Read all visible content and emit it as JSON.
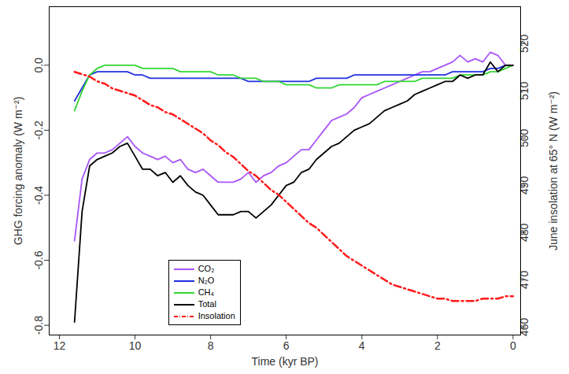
{
  "chart_data": {
    "type": "line",
    "xlabel": "Time (kyr BP)",
    "ylabel": "GHG forcing anomaly (W m⁻²)",
    "y2label": "June insolation at 65° N (W m⁻²)",
    "legend": "lower center",
    "grid": false,
    "x": [
      11.6,
      11.4,
      11.2,
      11.0,
      10.8,
      10.6,
      10.4,
      10.2,
      10.0,
      9.8,
      9.6,
      9.4,
      9.2,
      9.0,
      8.8,
      8.6,
      8.4,
      8.2,
      8.0,
      7.8,
      7.6,
      7.4,
      7.2,
      7.0,
      6.8,
      6.6,
      6.4,
      6.2,
      6.0,
      5.8,
      5.6,
      5.4,
      5.2,
      5.0,
      4.8,
      4.6,
      4.4,
      4.2,
      4.0,
      3.8,
      3.6,
      3.4,
      3.2,
      3.0,
      2.8,
      2.6,
      2.4,
      2.2,
      2.0,
      1.8,
      1.6,
      1.4,
      1.2,
      1.0,
      0.8,
      0.6,
      0.4,
      0.2,
      0.0
    ],
    "xlim": [
      12.27,
      -0.2
    ],
    "xticks": [
      12,
      10,
      8,
      6,
      4,
      2,
      0
    ],
    "ylim": [
      -0.83,
      0.18
    ],
    "yticks": [
      -0.8,
      -0.6,
      -0.4,
      -0.2,
      {
        "value": 0,
        "label": "0.0"
      }
    ],
    "y2lim": [
      458.3,
      527.8
    ],
    "y2ticks": [
      460,
      470,
      480,
      490,
      500,
      510,
      520
    ],
    "series": [
      {
        "name": "CO₂",
        "color": "#a855f7",
        "line_style": "solid",
        "values": [
          -0.54,
          -0.35,
          -0.29,
          -0.27,
          -0.27,
          -0.26,
          -0.24,
          -0.22,
          -0.25,
          -0.27,
          -0.28,
          -0.29,
          -0.28,
          -0.3,
          -0.29,
          -0.32,
          -0.33,
          -0.32,
          -0.34,
          -0.36,
          -0.36,
          -0.36,
          -0.35,
          -0.33,
          -0.36,
          -0.34,
          -0.33,
          -0.31,
          -0.3,
          -0.28,
          -0.26,
          -0.26,
          -0.23,
          -0.2,
          -0.17,
          -0.16,
          -0.15,
          -0.13,
          -0.1,
          -0.09,
          -0.08,
          -0.07,
          -0.06,
          -0.05,
          -0.04,
          -0.03,
          -0.02,
          -0.02,
          -0.01,
          0.0,
          0.01,
          0.03,
          0.01,
          0.02,
          0.01,
          0.04,
          0.03,
          0.0,
          0.0
        ]
      },
      {
        "name": "N₂O",
        "color": "#1f2fe0",
        "line_style": "solid",
        "values": [
          -0.11,
          -0.07,
          -0.03,
          -0.02,
          -0.02,
          -0.02,
          -0.02,
          -0.02,
          -0.03,
          -0.03,
          -0.04,
          -0.04,
          -0.04,
          -0.04,
          -0.04,
          -0.04,
          -0.04,
          -0.04,
          -0.04,
          -0.04,
          -0.04,
          -0.04,
          -0.04,
          -0.05,
          -0.05,
          -0.05,
          -0.05,
          -0.05,
          -0.05,
          -0.05,
          -0.05,
          -0.05,
          -0.04,
          -0.04,
          -0.04,
          -0.04,
          -0.04,
          -0.03,
          -0.03,
          -0.03,
          -0.03,
          -0.03,
          -0.03,
          -0.03,
          -0.03,
          -0.03,
          -0.03,
          -0.03,
          -0.03,
          -0.03,
          -0.02,
          -0.02,
          -0.02,
          -0.02,
          -0.02,
          -0.01,
          -0.01,
          0.0,
          0.0
        ]
      },
      {
        "name": "CH₄",
        "color": "#33d633",
        "line_style": "solid",
        "values": [
          -0.14,
          -0.08,
          -0.03,
          -0.01,
          0.0,
          0.0,
          0.0,
          0.0,
          0.0,
          -0.01,
          -0.01,
          -0.01,
          -0.01,
          -0.01,
          -0.02,
          -0.02,
          -0.02,
          -0.02,
          -0.02,
          -0.03,
          -0.03,
          -0.03,
          -0.04,
          -0.04,
          -0.04,
          -0.05,
          -0.05,
          -0.05,
          -0.06,
          -0.06,
          -0.06,
          -0.06,
          -0.07,
          -0.07,
          -0.07,
          -0.06,
          -0.06,
          -0.06,
          -0.06,
          -0.06,
          -0.06,
          -0.05,
          -0.05,
          -0.05,
          -0.05,
          -0.05,
          -0.04,
          -0.04,
          -0.04,
          -0.04,
          -0.04,
          -0.03,
          -0.03,
          -0.03,
          -0.03,
          -0.02,
          -0.02,
          -0.01,
          0.0
        ]
      },
      {
        "name": "Total",
        "color": "#000000",
        "line_style": "solid",
        "values": [
          -0.79,
          -0.45,
          -0.31,
          -0.29,
          -0.28,
          -0.27,
          -0.25,
          -0.24,
          -0.28,
          -0.32,
          -0.32,
          -0.34,
          -0.33,
          -0.36,
          -0.34,
          -0.37,
          -0.39,
          -0.4,
          -0.43,
          -0.46,
          -0.46,
          -0.46,
          -0.45,
          -0.45,
          -0.47,
          -0.45,
          -0.43,
          -0.4,
          -0.37,
          -0.36,
          -0.33,
          -0.32,
          -0.29,
          -0.27,
          -0.25,
          -0.24,
          -0.22,
          -0.2,
          -0.19,
          -0.18,
          -0.16,
          -0.14,
          -0.13,
          -0.12,
          -0.11,
          -0.09,
          -0.08,
          -0.07,
          -0.06,
          -0.05,
          -0.05,
          -0.03,
          -0.04,
          -0.03,
          -0.03,
          0.01,
          -0.02,
          0.0,
          0.0
        ]
      },
      {
        "name": "Insolation",
        "color": "#ff1a1a",
        "line_style": "dashdot",
        "axis": "y2",
        "values": [
          514,
          513.5,
          513,
          512,
          511.5,
          510.5,
          510,
          509.5,
          509,
          508,
          507,
          506.5,
          505.5,
          505,
          504,
          503,
          502,
          501,
          499.5,
          498.5,
          497,
          496,
          494.5,
          493,
          492,
          490.5,
          489,
          488,
          486.5,
          485,
          483.5,
          482,
          481,
          479.5,
          478,
          476.5,
          475,
          474,
          473,
          472,
          471,
          470,
          469,
          468.5,
          468,
          467.5,
          467,
          466.5,
          466,
          466,
          465.5,
          465.5,
          465.5,
          465.5,
          466,
          466,
          466,
          466.5,
          466.5
        ]
      }
    ]
  }
}
